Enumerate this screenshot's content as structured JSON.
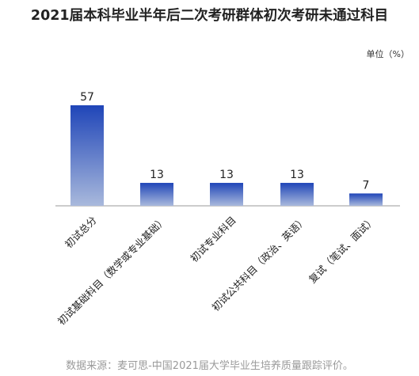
{
  "chart_data": {
    "type": "bar",
    "title": "2021届本科毕业半年后二次考研群体初次考研未通过科目",
    "unit": "单位（%）",
    "categories": [
      "初试总分",
      "初试基础科目（数学或专业基础）",
      "初试专业科目",
      "初试公共科目（政治、英语）",
      "复试（笔试、面试）"
    ],
    "values": [
      57,
      13,
      13,
      13,
      7
    ],
    "ylim": [
      0,
      60
    ],
    "grid": false,
    "legend": "none",
    "source": "数据来源：麦可思-中国2021届大学毕业生培养质量跟踪评价。",
    "colors": {
      "bar_top": "#1f45b8",
      "bar_bottom": "#a9b9dc",
      "axis": "#999999"
    }
  }
}
